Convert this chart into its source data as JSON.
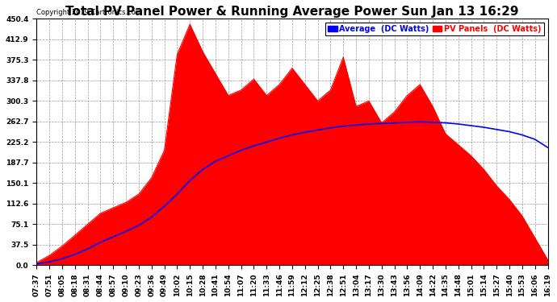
{
  "title": "Total PV Panel Power & Running Average Power Sun Jan 13 16:29",
  "copyright": "Copyright 2019 Cartronics.com",
  "legend_avg": "Average  (DC Watts)",
  "legend_pv": "PV Panels  (DC Watts)",
  "ymin": 0.0,
  "ymax": 450.4,
  "yticks": [
    0.0,
    37.5,
    75.1,
    112.6,
    150.1,
    187.7,
    225.2,
    262.7,
    300.3,
    337.8,
    375.3,
    412.9,
    450.4
  ],
  "bg_color": "#ffffff",
  "plot_bg_color": "#ffffff",
  "grid_color": "#999999",
  "pv_fill_color": "#ff0000",
  "avg_line_color": "#0000ff",
  "title_fontsize": 11,
  "tick_fontsize": 6.5,
  "x_times": [
    "07:37",
    "07:51",
    "08:05",
    "08:18",
    "08:31",
    "08:44",
    "08:57",
    "09:10",
    "09:23",
    "09:36",
    "09:49",
    "10:02",
    "10:15",
    "10:28",
    "10:41",
    "10:54",
    "11:07",
    "11:20",
    "11:33",
    "11:46",
    "11:59",
    "12:12",
    "12:25",
    "12:38",
    "12:51",
    "13:04",
    "13:17",
    "13:30",
    "13:43",
    "13:56",
    "14:09",
    "14:22",
    "14:35",
    "14:48",
    "15:01",
    "15:14",
    "15:27",
    "15:40",
    "15:53",
    "16:06",
    "16:19"
  ],
  "pv_values": [
    5,
    18,
    35,
    55,
    75,
    95,
    105,
    115,
    130,
    160,
    210,
    385,
    440,
    390,
    350,
    310,
    320,
    340,
    310,
    330,
    360,
    330,
    300,
    320,
    380,
    290,
    300,
    260,
    280,
    310,
    330,
    290,
    240,
    220,
    200,
    175,
    145,
    120,
    90,
    50,
    10
  ],
  "avg_values": [
    3,
    6,
    12,
    20,
    30,
    42,
    52,
    62,
    73,
    88,
    108,
    130,
    155,
    175,
    190,
    200,
    210,
    218,
    225,
    232,
    238,
    243,
    247,
    251,
    254,
    256,
    258,
    259,
    260,
    261,
    262,
    261,
    260,
    258,
    255,
    252,
    248,
    244,
    238,
    230,
    215
  ]
}
